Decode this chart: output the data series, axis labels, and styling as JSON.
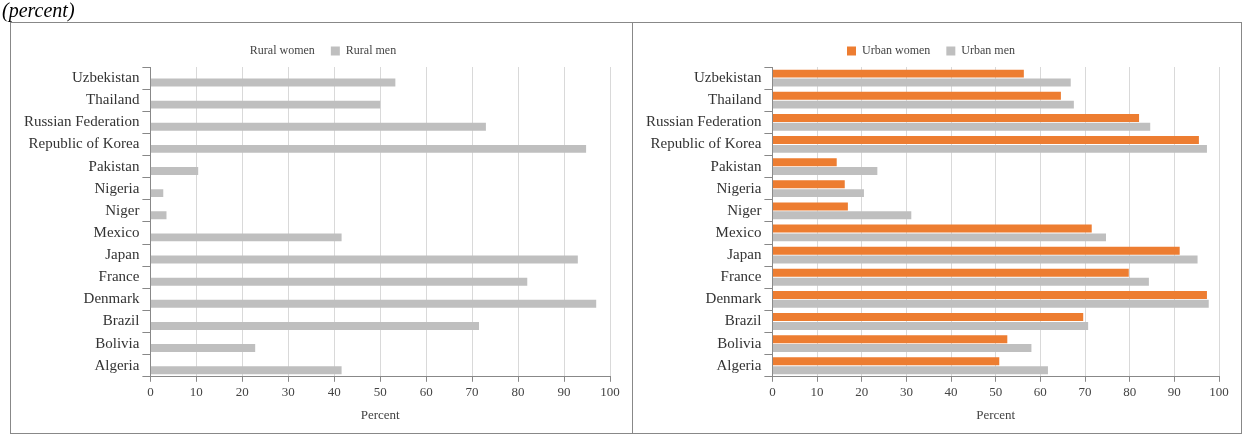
{
  "chart_data": [
    {
      "type": "bar",
      "title": "(percent)",
      "orientation": "horizontal",
      "xlabel": "Percent",
      "categories": [
        "Uzbekistan",
        "Thailand",
        "Russian Federation",
        "Republic of Korea",
        "Pakistan",
        "Nigeria",
        "Niger",
        "Mexico",
        "Japan",
        "France",
        "Denmark",
        "Brazil",
        "Bolivia",
        "Algeria"
      ],
      "series": [
        {
          "name": "Rural women",
          "values": [
            null,
            null,
            null,
            null,
            null,
            null,
            null,
            null,
            null,
            null,
            null,
            null,
            null,
            null
          ]
        },
        {
          "name": "Rural men",
          "color": "#bfbfbf",
          "values": [
            53.3,
            50,
            73,
            94.8,
            10.4,
            2.8,
            3.5,
            41.6,
            93,
            82,
            97,
            71.5,
            22.8,
            41.6
          ]
        }
      ],
      "xlim": [
        0,
        100
      ],
      "xticks": [
        0,
        10,
        20,
        30,
        40,
        50,
        60,
        70,
        80,
        90,
        100
      ],
      "grid": "x",
      "legend": "top"
    },
    {
      "type": "bar",
      "orientation": "horizontal",
      "xlabel": "Percent",
      "categories": [
        "Uzbekistan",
        "Thailand",
        "Russian Federation",
        "Republic of Korea",
        "Pakistan",
        "Nigeria",
        "Niger",
        "Mexico",
        "Japan",
        "France",
        "Denmark",
        "Brazil",
        "Bolivia",
        "Algeria"
      ],
      "series": [
        {
          "name": "Urban women",
          "color": "#ed7d31",
          "values": [
            56.3,
            64.6,
            82.1,
            95.5,
            14.4,
            16.2,
            16.9,
            71.5,
            91.2,
            79.8,
            97.3,
            69.6,
            52.6,
            50.8
          ]
        },
        {
          "name": "Urban men",
          "color": "#bfbfbf",
          "values": [
            66.8,
            67.5,
            84.6,
            97.3,
            23.5,
            20.5,
            31.1,
            74.7,
            95.2,
            84.3,
            97.7,
            70.7,
            58,
            61.7
          ]
        }
      ],
      "xlim": [
        0,
        100
      ],
      "xticks": [
        0,
        10,
        20,
        30,
        40,
        50,
        60,
        70,
        80,
        90,
        100
      ],
      "grid": "x",
      "legend": "top"
    }
  ]
}
